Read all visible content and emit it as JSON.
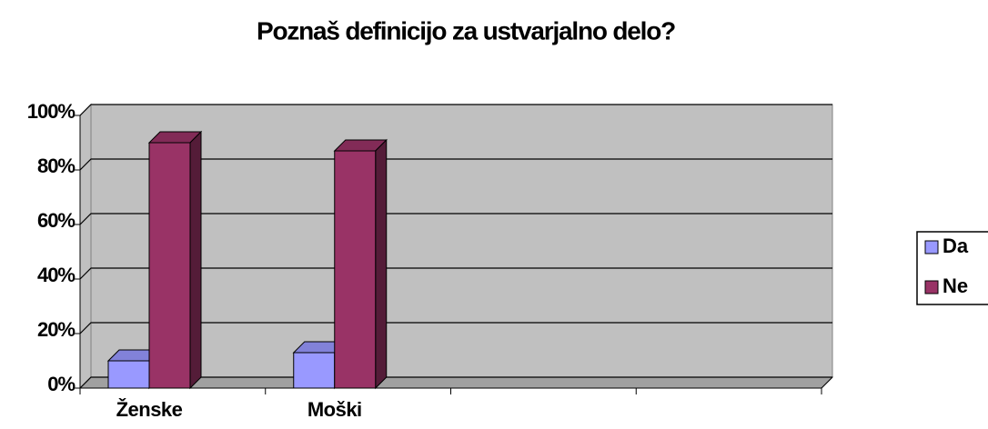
{
  "chart_data": {
    "type": "bar3d",
    "title": "Poznaš definicijo za ustvarjalno delo?",
    "categories": [
      "Ženske",
      "Moški",
      null,
      null
    ],
    "series": [
      {
        "name": "Da",
        "color": "#9999ff",
        "values": [
          10,
          13,
          null,
          null
        ]
      },
      {
        "name": "Ne",
        "color": "#993366",
        "values": [
          90,
          87,
          null,
          null
        ]
      }
    ],
    "ylim": [
      0,
      100
    ],
    "yticks": [
      {
        "value": 0,
        "label": "0%"
      },
      {
        "value": 20,
        "label": "20%"
      },
      {
        "value": 40,
        "label": "40%"
      },
      {
        "value": 60,
        "label": "60%"
      },
      {
        "value": 80,
        "label": "80%"
      },
      {
        "value": 100,
        "label": "100%"
      }
    ],
    "grid": true,
    "legend": "right"
  }
}
